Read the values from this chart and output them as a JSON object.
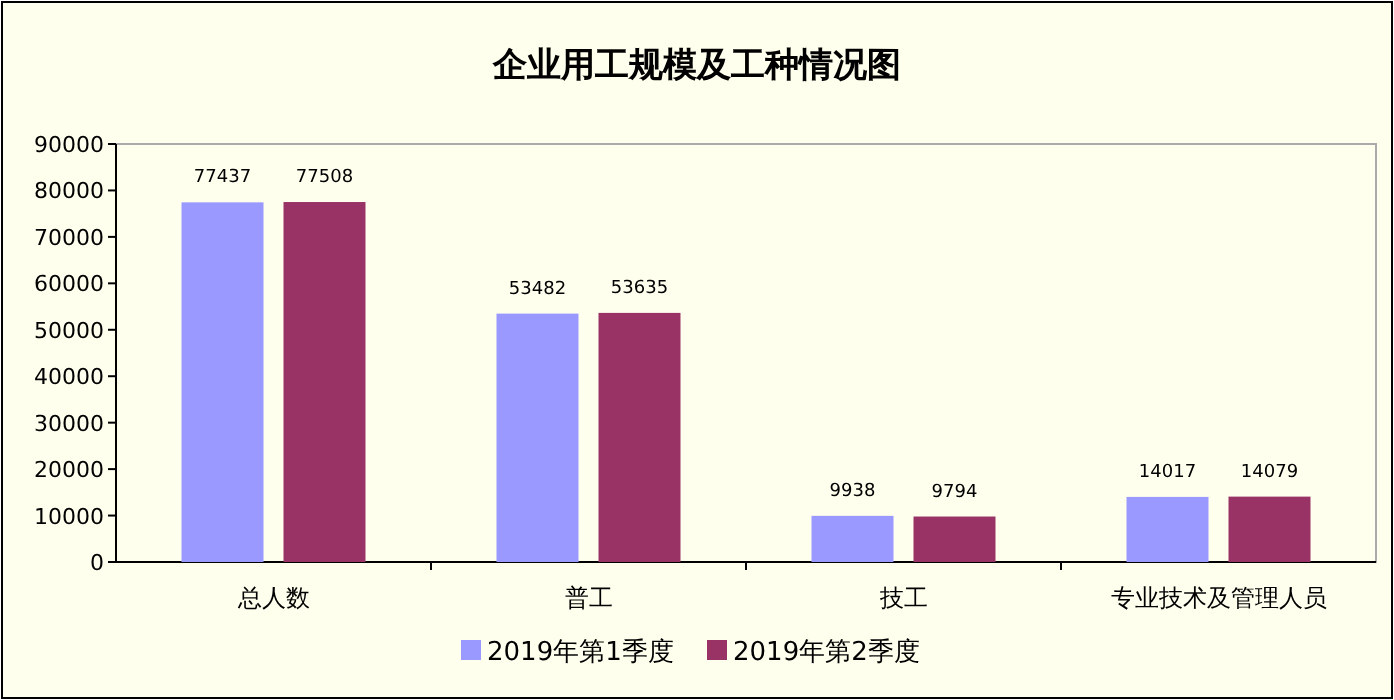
{
  "chart_data": {
    "type": "bar",
    "title": "企业用工规模及工种情况图",
    "categories": [
      "总人数",
      "普工",
      "技工",
      "专业技术及管理人员"
    ],
    "series": [
      {
        "name": "2019年第1季度",
        "color": "#9999ff",
        "values": [
          77437,
          53482,
          9938,
          14017
        ]
      },
      {
        "name": "2019年第2季度",
        "color": "#993366",
        "values": [
          77508,
          53635,
          9794,
          14079
        ]
      }
    ],
    "ylim": [
      0,
      90000
    ],
    "yticks": [
      0,
      10000,
      20000,
      30000,
      40000,
      50000,
      60000,
      70000,
      80000,
      90000
    ],
    "data_labels": true,
    "grid": false,
    "legend": "bottom"
  }
}
